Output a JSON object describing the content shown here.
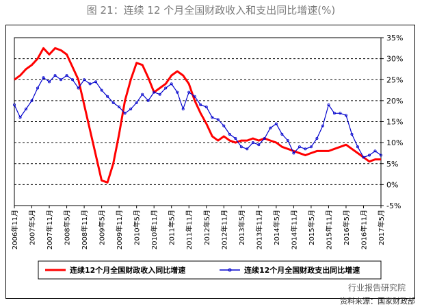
{
  "header": {
    "title": "图 21：连续 12 个月全国财政收入和支出同比增速(%)"
  },
  "footer": {
    "watermark": "行业报告研究院",
    "source": "资料来源：国家财政部"
  },
  "colors": {
    "revenue": "#ff0000",
    "expenditure": "#0000cc"
  },
  "chart_data": {
    "type": "line",
    "title": "图 21：连续 12 个月全国财政收入和支出同比增速(%)",
    "ylim": [
      -5,
      35
    ],
    "yticks": [
      "35%",
      "30%",
      "25%",
      "20%",
      "15%",
      "10%",
      "5%",
      "0%",
      "-5%"
    ],
    "ytick_values": [
      35,
      30,
      25,
      20,
      15,
      10,
      5,
      0,
      -5
    ],
    "xticks": [
      "2006年11月",
      "2007年5月",
      "2007年11月",
      "2008年5月",
      "2008年11月",
      "2009年5月",
      "2009年11月",
      "2010年5月",
      "2010年11月",
      "2011年5月",
      "2011年11月",
      "2012年5月",
      "2012年11月",
      "2013年5月",
      "2013年11月",
      "2014年5月",
      "2014年11月",
      "2015年5月",
      "2015年11月",
      "2016年5月",
      "2016年11月",
      "2017年5月"
    ],
    "grid": "horizontal-dashed",
    "legend_position": "bottom",
    "series": [
      {
        "name": "连续12个月全国财政收入同比增速",
        "color": "#ff0000",
        "points": [
          [
            "2006-11",
            25
          ],
          [
            "2007-01",
            26
          ],
          [
            "2007-03",
            27.5
          ],
          [
            "2007-05",
            28.5
          ],
          [
            "2007-07",
            30
          ],
          [
            "2007-09",
            32.5
          ],
          [
            "2007-11",
            31
          ],
          [
            "2008-01",
            32.5
          ],
          [
            "2008-03",
            32
          ],
          [
            "2008-05",
            31
          ],
          [
            "2008-07",
            28
          ],
          [
            "2008-09",
            25
          ],
          [
            "2008-11",
            19
          ],
          [
            "2009-01",
            13
          ],
          [
            "2009-03",
            7
          ],
          [
            "2009-05",
            1
          ],
          [
            "2009-07",
            0.5
          ],
          [
            "2009-09",
            5
          ],
          [
            "2009-11",
            12
          ],
          [
            "2010-01",
            20
          ],
          [
            "2010-03",
            25
          ],
          [
            "2010-05",
            29
          ],
          [
            "2010-07",
            28.5
          ],
          [
            "2010-09",
            25.5
          ],
          [
            "2010-11",
            22
          ],
          [
            "2011-01",
            23
          ],
          [
            "2011-03",
            24
          ],
          [
            "2011-05",
            26
          ],
          [
            "2011-07",
            27
          ],
          [
            "2011-09",
            26
          ],
          [
            "2011-11",
            24
          ],
          [
            "2012-01",
            20
          ],
          [
            "2012-03",
            17
          ],
          [
            "2012-05",
            14.5
          ],
          [
            "2012-07",
            11.5
          ],
          [
            "2012-09",
            10.5
          ],
          [
            "2012-11",
            11.5
          ],
          [
            "2013-01",
            10.5
          ],
          [
            "2013-03",
            10
          ],
          [
            "2013-05",
            10.5
          ],
          [
            "2013-07",
            10.5
          ],
          [
            "2013-09",
            11
          ],
          [
            "2013-11",
            10.5
          ],
          [
            "2014-01",
            11
          ],
          [
            "2014-03",
            10.5
          ],
          [
            "2014-05",
            10
          ],
          [
            "2014-07",
            9
          ],
          [
            "2014-09",
            8.5
          ],
          [
            "2014-11",
            8
          ],
          [
            "2015-01",
            7.5
          ],
          [
            "2015-03",
            7
          ],
          [
            "2015-05",
            7.5
          ],
          [
            "2015-07",
            8
          ],
          [
            "2015-09",
            8
          ],
          [
            "2015-11",
            8
          ],
          [
            "2016-01",
            8.5
          ],
          [
            "2016-03",
            9
          ],
          [
            "2016-05",
            9.5
          ],
          [
            "2016-07",
            8.5
          ],
          [
            "2016-09",
            7.5
          ],
          [
            "2016-11",
            6.5
          ],
          [
            "2017-01",
            5.5
          ],
          [
            "2017-03",
            6
          ],
          [
            "2017-05",
            6
          ]
        ]
      },
      {
        "name": "连续12个月全国财政支出同比增速",
        "color": "#0000cc",
        "points": [
          [
            "2006-11",
            19
          ],
          [
            "2007-01",
            16
          ],
          [
            "2007-03",
            18
          ],
          [
            "2007-05",
            20
          ],
          [
            "2007-07",
            23
          ],
          [
            "2007-09",
            25.5
          ],
          [
            "2007-11",
            24.5
          ],
          [
            "2008-01",
            26
          ],
          [
            "2008-03",
            25
          ],
          [
            "2008-05",
            26
          ],
          [
            "2008-07",
            25
          ],
          [
            "2008-09",
            23
          ],
          [
            "2008-11",
            25
          ],
          [
            "2009-01",
            24
          ],
          [
            "2009-03",
            24.5
          ],
          [
            "2009-05",
            22.5
          ],
          [
            "2009-07",
            21
          ],
          [
            "2009-09",
            19.5
          ],
          [
            "2009-11",
            18.5
          ],
          [
            "2010-01",
            17
          ],
          [
            "2010-03",
            18
          ],
          [
            "2010-05",
            19.5
          ],
          [
            "2010-07",
            21.5
          ],
          [
            "2010-09",
            20
          ],
          [
            "2010-11",
            22
          ],
          [
            "2011-01",
            21.5
          ],
          [
            "2011-03",
            23
          ],
          [
            "2011-05",
            24
          ],
          [
            "2011-07",
            22
          ],
          [
            "2011-09",
            18
          ],
          [
            "2011-11",
            22
          ],
          [
            "2012-01",
            21
          ],
          [
            "2012-03",
            19
          ],
          [
            "2012-05",
            18.5
          ],
          [
            "2012-07",
            16
          ],
          [
            "2012-09",
            15.5
          ],
          [
            "2012-11",
            14
          ],
          [
            "2013-01",
            12
          ],
          [
            "2013-03",
            11
          ],
          [
            "2013-05",
            9
          ],
          [
            "2013-07",
            8.5
          ],
          [
            "2013-09",
            10
          ],
          [
            "2013-11",
            9.5
          ],
          [
            "2014-01",
            11
          ],
          [
            "2014-03",
            13.5
          ],
          [
            "2014-05",
            14.5
          ],
          [
            "2014-07",
            12
          ],
          [
            "2014-09",
            10.5
          ],
          [
            "2014-11",
            7.5
          ],
          [
            "2015-01",
            9
          ],
          [
            "2015-03",
            8.5
          ],
          [
            "2015-05",
            9
          ],
          [
            "2015-07",
            11
          ],
          [
            "2015-09",
            14
          ],
          [
            "2015-11",
            19
          ],
          [
            "2016-01",
            17
          ],
          [
            "2016-03",
            17
          ],
          [
            "2016-05",
            16.5
          ],
          [
            "2016-07",
            12
          ],
          [
            "2016-09",
            9
          ],
          [
            "2016-11",
            6.5
          ],
          [
            "2017-01",
            7
          ],
          [
            "2017-03",
            8
          ],
          [
            "2017-05",
            7
          ]
        ]
      }
    ]
  }
}
